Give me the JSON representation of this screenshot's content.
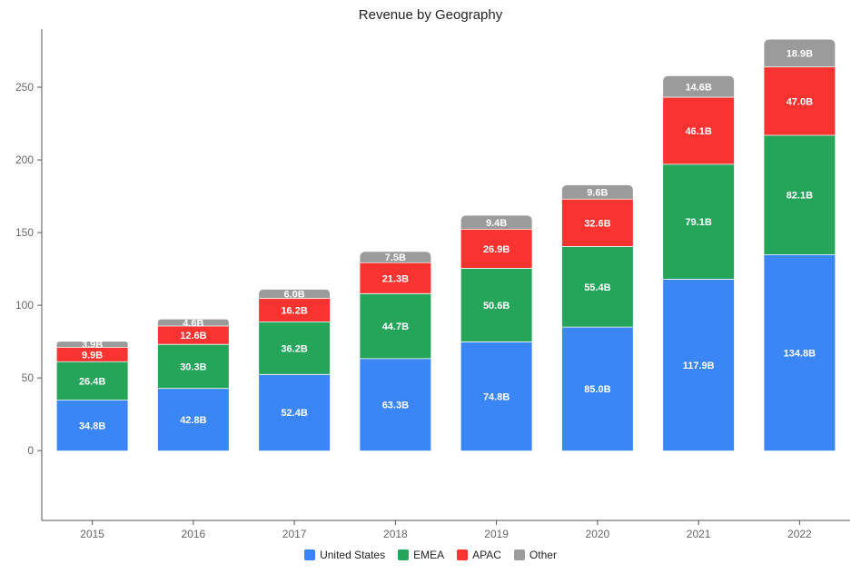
{
  "chart_data": {
    "type": "bar",
    "stacked": true,
    "title": "Revenue by Geography",
    "categories": [
      "2015",
      "2016",
      "2017",
      "2018",
      "2019",
      "2020",
      "2021",
      "2022"
    ],
    "series": [
      {
        "name": "United States",
        "color": "#3B86F7",
        "values": [
          34.8,
          42.8,
          52.4,
          63.3,
          74.8,
          85.0,
          117.9,
          134.8
        ],
        "labels": [
          "34.8B",
          "42.8B",
          "52.4B",
          "63.3B",
          "74.8B",
          "85.0B",
          "117.9B",
          "134.8B"
        ]
      },
      {
        "name": "EMEA",
        "color": "#25A55A",
        "values": [
          26.4,
          30.3,
          36.2,
          44.7,
          50.6,
          55.4,
          79.1,
          82.1
        ],
        "labels": [
          "26.4B",
          "30.3B",
          "36.2B",
          "44.7B",
          "50.6B",
          "55.4B",
          "79.1B",
          "82.1B"
        ]
      },
      {
        "name": "APAC",
        "color": "#F9332F",
        "values": [
          9.9,
          12.6,
          16.2,
          21.3,
          26.9,
          32.6,
          46.1,
          47.0
        ],
        "labels": [
          "9.9B",
          "12.6B",
          "16.2B",
          "21.3B",
          "26.9B",
          "32.6B",
          "46.1B",
          "47.0B"
        ]
      },
      {
        "name": "Other",
        "color": "#9B9B9B",
        "values": [
          3.9,
          4.6,
          6.0,
          7.5,
          9.4,
          9.6,
          14.6,
          18.9
        ],
        "labels": [
          "3.9B",
          "4.6B",
          "6.0B",
          "7.5B",
          "9.4B",
          "9.6B",
          "14.6B",
          "18.9B"
        ]
      }
    ],
    "yticks": [
      0,
      50,
      100,
      150,
      200,
      250
    ],
    "ylim": [
      -48,
      290
    ],
    "xlabel": "",
    "ylabel": "",
    "grid": false,
    "legend": "bottom-center"
  }
}
